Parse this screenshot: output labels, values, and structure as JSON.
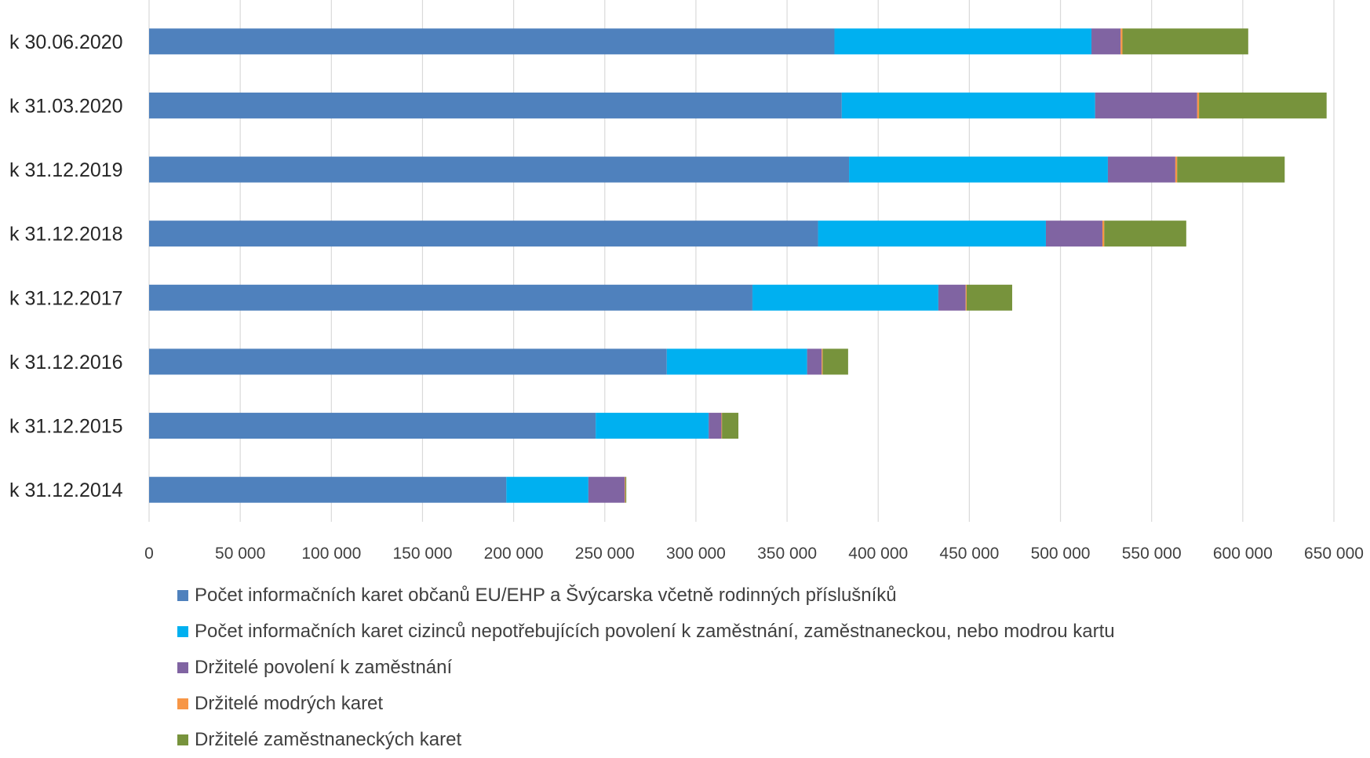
{
  "chart_data": {
    "type": "bar",
    "orientation": "horizontal",
    "stacked": true,
    "categories": [
      "k 30.06.2020",
      "k 31.03.2020",
      "k 31.12.2019",
      "k 31.12.2018",
      "k 31.12.2017",
      "k 31.12.2016",
      "k 31.12.2015",
      "k 31.12.2014"
    ],
    "series": [
      {
        "name": "Počet informačních karet občanů EU/EHP a Švýcarska včetně rodinných příslušníků",
        "color": "#4f81bd",
        "values": [
          376000,
          380000,
          384000,
          367000,
          331000,
          284000,
          245000,
          196000
        ]
      },
      {
        "name": "Počet informačních karet cizinců nepotřebujících povolení k zaměstnání, zaměstnaneckou, nebo modrou kartu",
        "color": "#00b0f0",
        "values": [
          141000,
          139000,
          142000,
          125000,
          102000,
          77000,
          62000,
          45000
        ]
      },
      {
        "name": "Držitelé povolení k zaměstnání",
        "color": "#8064a2",
        "values": [
          16000,
          56000,
          37000,
          31000,
          15000,
          8000,
          7000,
          20000
        ]
      },
      {
        "name": "Držitelé modrých karet",
        "color": "#f79646",
        "values": [
          1000,
          1000,
          1000,
          1000,
          500,
          500,
          300,
          300
        ]
      },
      {
        "name": "Držitelé zaměstnaneckých karet",
        "color": "#77933c",
        "values": [
          69000,
          70000,
          59000,
          45000,
          25000,
          14000,
          9000,
          500
        ]
      }
    ],
    "xlim": [
      0,
      650000
    ],
    "xticks": [
      0,
      50000,
      100000,
      150000,
      200000,
      250000,
      300000,
      350000,
      400000,
      450000,
      500000,
      550000,
      600000,
      650000
    ],
    "xtick_labels": [
      "0",
      "50 000",
      "100 000",
      "150 000",
      "200 000",
      "250 000",
      "300 000",
      "350 000",
      "400 000",
      "450 000",
      "500 000",
      "550 000",
      "600 000",
      "650 000"
    ],
    "grid": true,
    "legend_position": "bottom",
    "title": "",
    "xlabel": "",
    "ylabel": ""
  }
}
